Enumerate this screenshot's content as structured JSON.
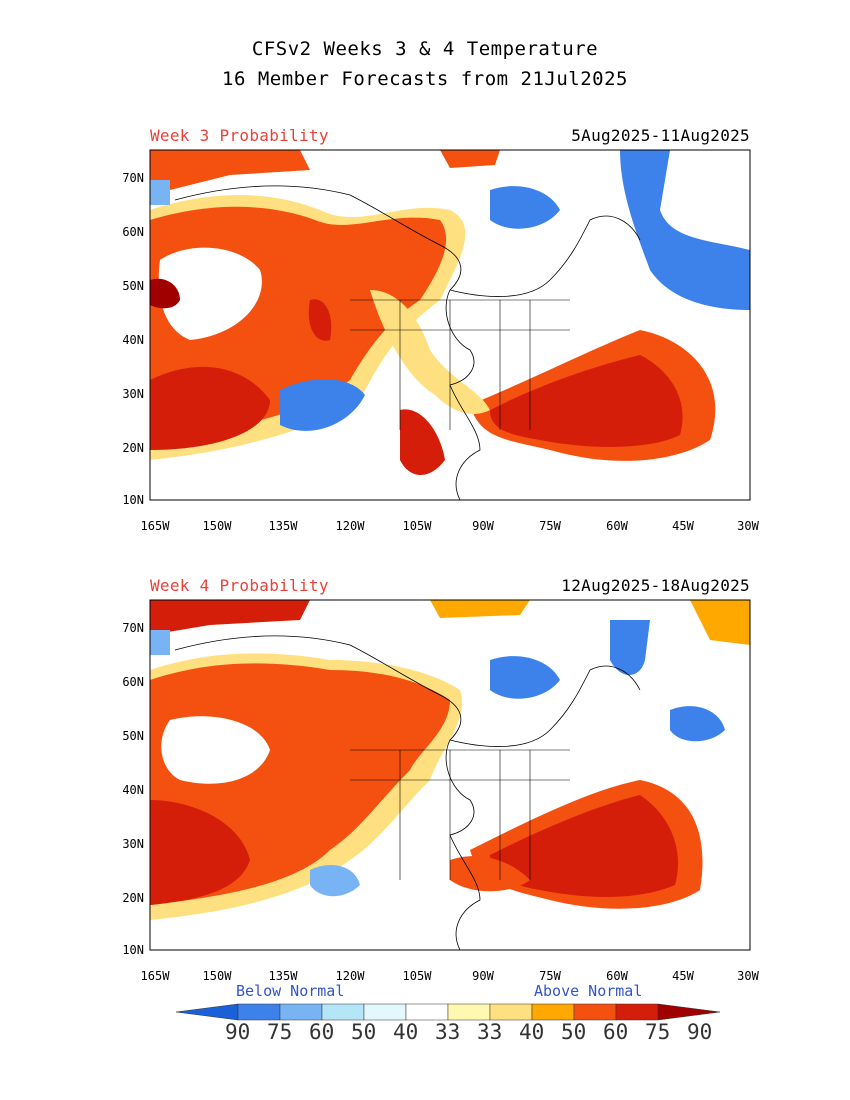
{
  "title_line1": "CFSv2 Weeks 3 & 4 Temperature",
  "title_line2": "16 Member Forecasts from 21Jul2025",
  "panels": [
    {
      "label": "Week 3 Probability",
      "dates": "5Aug2025-11Aug2025"
    },
    {
      "label": "Week 4 Probability",
      "dates": "12Aug2025-18Aug2025"
    }
  ],
  "axes": {
    "lon_ticks": [
      "165W",
      "150W",
      "135W",
      "120W",
      "105W",
      "90W",
      "75W",
      "60W",
      "45W",
      "30W"
    ],
    "lat_ticks": [
      "70N",
      "60N",
      "50N",
      "40N",
      "30N",
      "20N",
      "10N"
    ]
  },
  "legend": {
    "below_label": "Below Normal",
    "above_label": "Above Normal",
    "values": [
      "90",
      "75",
      "60",
      "50",
      "40",
      "33",
      "33",
      "40",
      "50",
      "60",
      "75",
      "90"
    ],
    "colors": [
      "#1a60d8",
      "#3c82ea",
      "#78b4f4",
      "#b4e6f8",
      "#e2f8fc",
      "#ffffff",
      "#fff8b0",
      "#ffe080",
      "#ffa800",
      "#f45010",
      "#d41e0a",
      "#a00000"
    ]
  }
}
